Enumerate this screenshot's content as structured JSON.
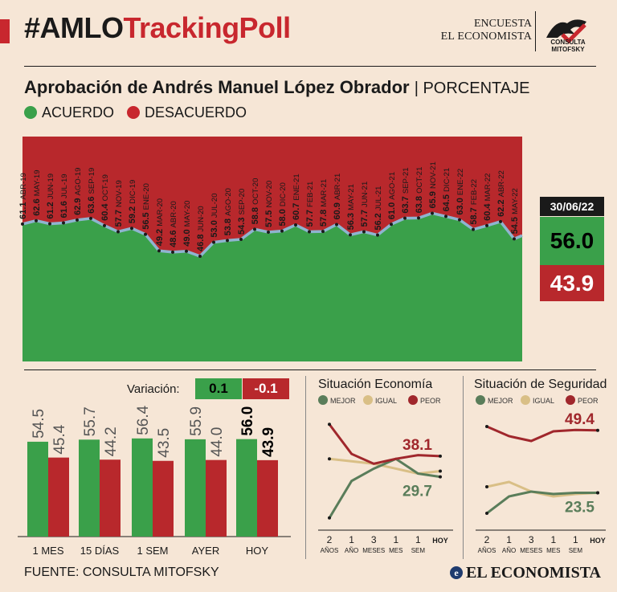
{
  "header": {
    "title_black": "#AMLO",
    "title_red": "TrackingPoll",
    "encuesta": "ENCUESTA",
    "publisher": "EL ECONOMISTA",
    "logo_caption": "CONSULTA MITOFSKY"
  },
  "subtitle": {
    "main": "Aprobación de Andrés Manuel López Obrador",
    "unit": "PORCENTAJE"
  },
  "legend": {
    "agree": "ACUERDO",
    "disagree": "DESACUERDO"
  },
  "colors": {
    "green": "#3aa04a",
    "red": "#b8282c",
    "line": "#8fb4d0",
    "title_red": "#c8272e",
    "bg": "#f6e6d6"
  },
  "latest": {
    "date": "30/06/22",
    "agree": "56.0",
    "disagree": "43.9"
  },
  "variation": {
    "label": "Variación:",
    "agree": "0.1",
    "disagree": "-0.1"
  },
  "situaciones": {
    "economia_title": "Situación Economía",
    "seguridad_title": "Situación de Seguridad",
    "legend": [
      "MEJOR",
      "IGUAL",
      "PEOR"
    ],
    "legend_colors": [
      "#5a7d5a",
      "#d9bf86",
      "#a0272c"
    ]
  },
  "footer": {
    "source": "FUENTE: CONSULTA MITOFSKY",
    "brand": "EL ECONOMISTA",
    "brand_letter": "e"
  },
  "chart_data": [
    {
      "type": "area",
      "title": "Aprobación de Andrés Manuel López Obrador",
      "unit": "PORCENTAJE",
      "ylim": [
        0,
        100
      ],
      "series": [
        {
          "name": "ACUERDO",
          "color": "#3aa04a"
        },
        {
          "name": "DESACUERDO",
          "color": "#b8282c"
        }
      ],
      "monthly_points": [
        {
          "label": "ABR-19",
          "value": 61.1
        },
        {
          "label": "MAY-19",
          "value": 62.6
        },
        {
          "label": "JUN-19",
          "value": 61.2
        },
        {
          "label": "JUL-19",
          "value": 61.6
        },
        {
          "label": "AGO-19",
          "value": 62.9
        },
        {
          "label": "SEP-19",
          "value": 63.6
        },
        {
          "label": "OCT-19",
          "value": 60.4
        },
        {
          "label": "NOV-19",
          "value": 57.7
        },
        {
          "label": "DIC-19",
          "value": 59.2
        },
        {
          "label": "ENE-20",
          "value": 56.5
        },
        {
          "label": "MAR-20",
          "value": 49.2
        },
        {
          "label": "ABR-20",
          "value": 48.6
        },
        {
          "label": "MAY-20",
          "value": 49.0
        },
        {
          "label": "JUN-20",
          "value": 46.8
        },
        {
          "label": "JUL-20",
          "value": 53.0
        },
        {
          "label": "AGO-20",
          "value": 53.8
        },
        {
          "label": "SEP-20",
          "value": 54.3
        },
        {
          "label": "OCT-20",
          "value": 58.8
        },
        {
          "label": "NOV-20",
          "value": 57.5
        },
        {
          "label": "DIC-20",
          "value": 58.0
        },
        {
          "label": "ENE-21",
          "value": 60.7
        },
        {
          "label": "FEB-21",
          "value": 57.7
        },
        {
          "label": "MAR-21",
          "value": 57.8
        },
        {
          "label": "ABR-21",
          "value": 60.9
        },
        {
          "label": "MAY-21",
          "value": 56.3
        },
        {
          "label": "JUN-21",
          "value": 57.7
        },
        {
          "label": "JUL-21",
          "value": 56.2
        },
        {
          "label": "AGO-21",
          "value": 61.0
        },
        {
          "label": "SEP-21",
          "value": 63.7
        },
        {
          "label": "OCT-21",
          "value": 63.8
        },
        {
          "label": "NOV-21",
          "value": 65.9
        },
        {
          "label": "DIC-21",
          "value": 64.5
        },
        {
          "label": "ENE-22",
          "value": 63.0
        },
        {
          "label": "FEB-22",
          "value": 58.7
        },
        {
          "label": "MAR-22",
          "value": 60.4
        },
        {
          "label": "ABR-22",
          "value": 62.2
        },
        {
          "label": "MAY-22",
          "value": 54.5
        }
      ],
      "end": {
        "label": "30/06/22",
        "agree": 56.0,
        "disagree": 43.9
      }
    },
    {
      "type": "bar",
      "categories": [
        "1 MES",
        "15 DÍAS",
        "1 SEM",
        "AYER",
        "HOY"
      ],
      "series": [
        {
          "name": "ACUERDO",
          "values": [
            54.5,
            55.7,
            56.4,
            55.9,
            56.0
          ]
        },
        {
          "name": "DESACUERDO",
          "values": [
            45.4,
            44.2,
            43.5,
            44.0,
            43.9
          ]
        }
      ],
      "ylim": [
        0,
        60
      ]
    },
    {
      "type": "line",
      "title": "Situación Economía",
      "x": [
        "2 AÑOS",
        "1 AÑO",
        "3 MESES",
        "1 MES",
        "1 SEM",
        "HOY"
      ],
      "series": [
        {
          "name": "MEJOR",
          "values": [
            13,
            28,
            33,
            37,
            31,
            29.7
          ]
        },
        {
          "name": "IGUAL",
          "values": [
            37,
            36,
            35,
            33,
            31,
            32
          ]
        },
        {
          "name": "PEOR",
          "values": [
            51,
            39,
            35,
            37,
            38.5,
            38.1
          ]
        }
      ],
      "labels": {
        "peor": "38.1",
        "mejor": "29.7"
      },
      "ylim": [
        10,
        55
      ]
    },
    {
      "type": "line",
      "title": "Situación de Seguridad",
      "x": [
        "2 AÑOS",
        "1 AÑO",
        "3 MESES",
        "1 MES",
        "1 SEM",
        "HOY"
      ],
      "series": [
        {
          "name": "MEJOR",
          "values": [
            15,
            22,
            24,
            23,
            23.5,
            23.5
          ]
        },
        {
          "name": "IGUAL",
          "values": [
            26,
            28,
            24,
            22,
            23,
            23.5
          ]
        },
        {
          "name": "PEOR",
          "values": [
            51,
            47,
            45,
            49,
            49.6,
            49.4
          ]
        }
      ],
      "labels": {
        "peor": "49.4",
        "mejor": "23.5"
      },
      "ylim": [
        10,
        56
      ]
    }
  ],
  "axis_labels": {
    "line_x_top": [
      "2",
      "1",
      "3",
      "1",
      "1",
      "HOY"
    ],
    "line_x_bottom": [
      "AÑOS",
      "AÑO",
      "MESES",
      "MES",
      "SEM",
      ""
    ]
  }
}
